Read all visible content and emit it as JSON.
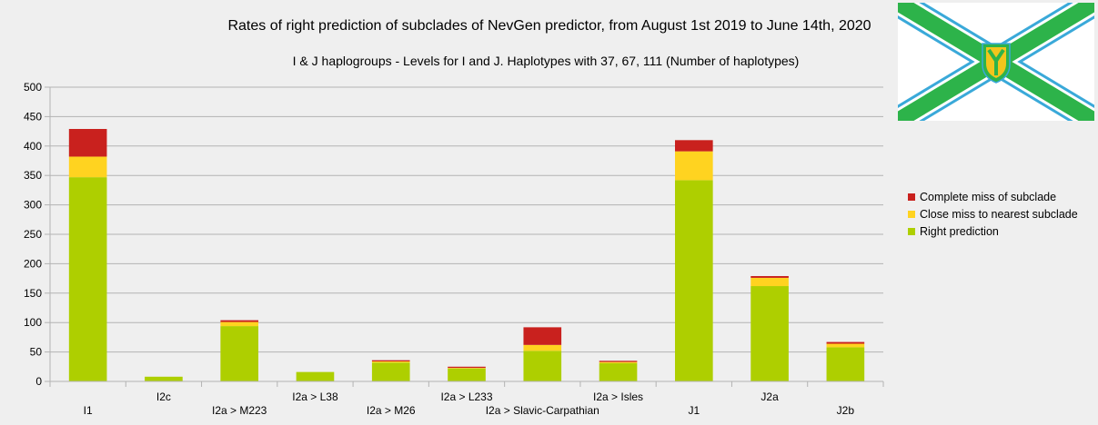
{
  "chart_data": {
    "type": "bar",
    "stacked": true,
    "title": "Rates of right prediction of subclades of NevGen predictor, from August 1st 2019 to June 14th, 2020",
    "subtitle": "I & J haplogroups - Levels for I and J. Haplotypes with 37, 67, 111 (Number of haplotypes)",
    "categories": [
      "I1",
      "I2c",
      "I2a > M223",
      "I2a > L38",
      "I2a > M26",
      "I2a > L233",
      "I2a > Slavic-Carpathian",
      "I2a > Isles",
      "J1",
      "J2a",
      "J2b"
    ],
    "series": [
      {
        "name": "Right prediction",
        "color": "#aecf00",
        "values": [
          347,
          8,
          94,
          16,
          32,
          22,
          52,
          31,
          342,
          162,
          58
        ]
      },
      {
        "name": "Close miss to nearest subclade",
        "color": "#ffd320",
        "values": [
          35,
          0,
          7,
          0,
          2,
          1,
          10,
          2,
          49,
          14,
          6
        ]
      },
      {
        "name": "Complete miss of subclade",
        "color": "#c9211e",
        "values": [
          47,
          0,
          3,
          0,
          2,
          2,
          30,
          2,
          19,
          3,
          3
        ]
      }
    ],
    "ylim": [
      0,
      500
    ],
    "yticks": [
      0,
      50,
      100,
      150,
      200,
      250,
      300,
      350,
      400,
      450,
      500
    ],
    "grid": true,
    "legend_position": "right"
  }
}
